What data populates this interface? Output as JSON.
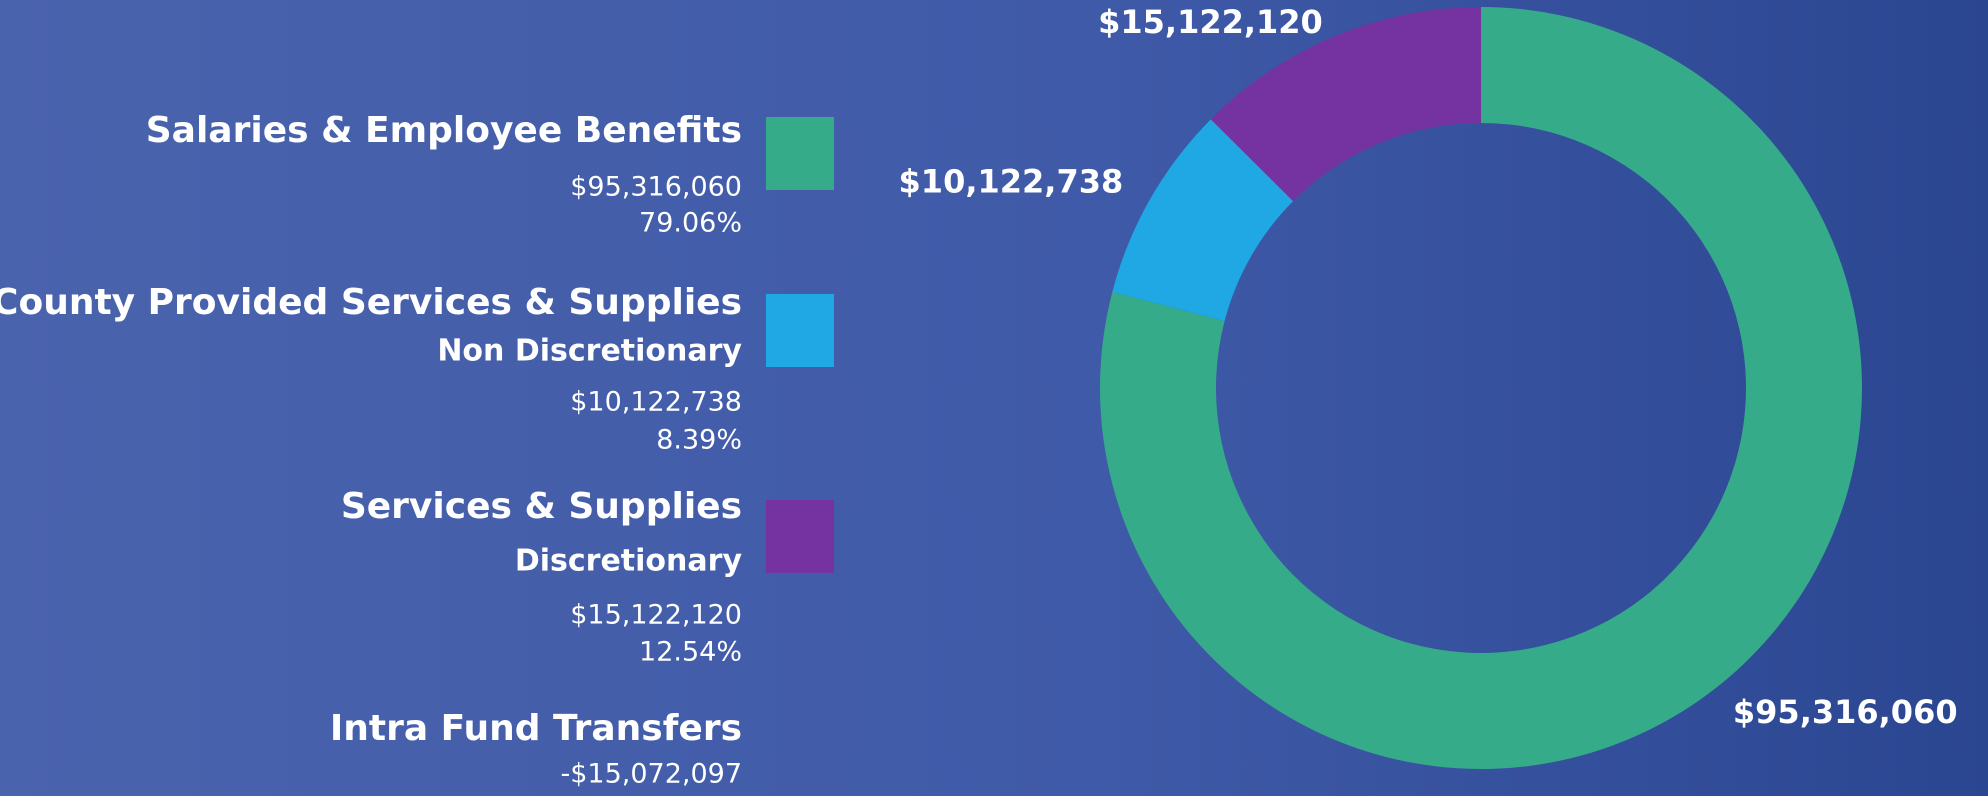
{
  "chart_data": {
    "type": "donut",
    "categories": [
      "Salaries & Employee Benefits",
      "County Provided Services & Supplies",
      "Services & Supplies"
    ],
    "subcategories": [
      null,
      "Non Discretionary",
      "Discretionary"
    ],
    "values": [
      95316060,
      10122738,
      15122120
    ],
    "value_labels": [
      "$95,316,060",
      "$10,122,738",
      "$15,122,120"
    ],
    "percentages": [
      {
        "value": 79.06,
        "label": "79.06%"
      },
      {
        "value": 8.39,
        "label": "8.39%"
      },
      {
        "value": 12.54,
        "label": "12.54%"
      }
    ],
    "colors": [
      "#35ab8a",
      "#1fa8e4",
      "#7433a0"
    ],
    "adjustment": {
      "name": "Intra Fund Transfers",
      "value": -15072097,
      "value_label": "-$15,072,097"
    }
  }
}
